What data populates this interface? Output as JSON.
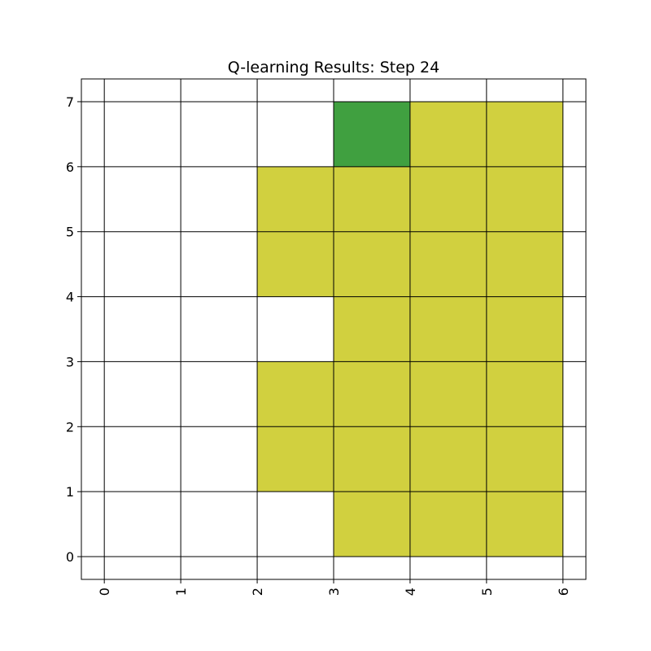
{
  "chart_data": {
    "type": "heatmap",
    "title": "Q-learning Results: Step 24",
    "xlabel": "",
    "ylabel": "",
    "xlim": [
      -0.3,
      6.3
    ],
    "ylim": [
      -0.35,
      7.35
    ],
    "x_ticks": [
      "0",
      "1",
      "2",
      "3",
      "4",
      "5",
      "6"
    ],
    "y_ticks": [
      "0",
      "1",
      "2",
      "3",
      "4",
      "5",
      "6",
      "7"
    ],
    "x_tick_rotation": 90,
    "grid": true,
    "grid_color": "#000000",
    "colors": {
      "visited": "#d1d03f",
      "current": "#40a040",
      "empty": "#ffffff"
    },
    "cells": [
      {
        "x": 3,
        "y": 0,
        "state": "visited"
      },
      {
        "x": 4,
        "y": 0,
        "state": "visited"
      },
      {
        "x": 5,
        "y": 0,
        "state": "visited"
      },
      {
        "x": 2,
        "y": 1,
        "state": "visited"
      },
      {
        "x": 3,
        "y": 1,
        "state": "visited"
      },
      {
        "x": 4,
        "y": 1,
        "state": "visited"
      },
      {
        "x": 5,
        "y": 1,
        "state": "visited"
      },
      {
        "x": 2,
        "y": 2,
        "state": "visited"
      },
      {
        "x": 3,
        "y": 2,
        "state": "visited"
      },
      {
        "x": 4,
        "y": 2,
        "state": "visited"
      },
      {
        "x": 5,
        "y": 2,
        "state": "visited"
      },
      {
        "x": 3,
        "y": 3,
        "state": "visited"
      },
      {
        "x": 4,
        "y": 3,
        "state": "visited"
      },
      {
        "x": 5,
        "y": 3,
        "state": "visited"
      },
      {
        "x": 2,
        "y": 4,
        "state": "visited"
      },
      {
        "x": 3,
        "y": 4,
        "state": "visited"
      },
      {
        "x": 4,
        "y": 4,
        "state": "visited"
      },
      {
        "x": 5,
        "y": 4,
        "state": "visited"
      },
      {
        "x": 2,
        "y": 5,
        "state": "visited"
      },
      {
        "x": 3,
        "y": 5,
        "state": "visited"
      },
      {
        "x": 4,
        "y": 5,
        "state": "visited"
      },
      {
        "x": 5,
        "y": 5,
        "state": "visited"
      },
      {
        "x": 3,
        "y": 6,
        "state": "current"
      },
      {
        "x": 4,
        "y": 6,
        "state": "visited"
      },
      {
        "x": 5,
        "y": 6,
        "state": "visited"
      }
    ]
  }
}
